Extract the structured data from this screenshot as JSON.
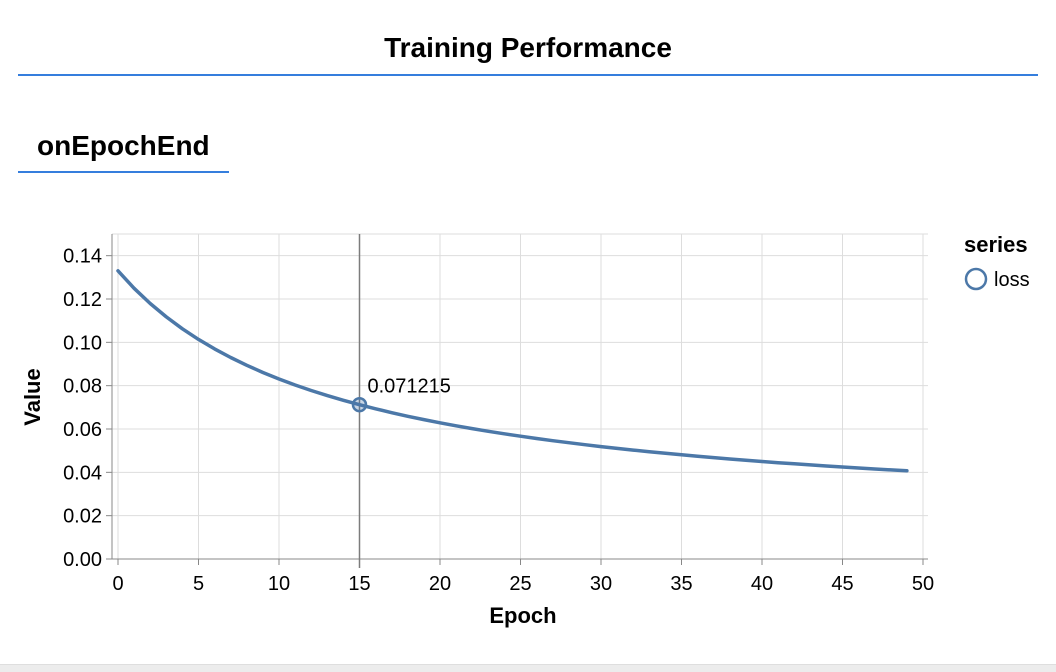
{
  "page": {
    "title": "Training Performance",
    "section_label": "onEpochEnd",
    "accent_color": "#357edd",
    "bottom_bar_color": "#ececec"
  },
  "chart_data": {
    "type": "line",
    "title": "onEpochEnd",
    "xlabel": "Epoch",
    "ylabel": "Value",
    "xlim": [
      0,
      50
    ],
    "ylim": [
      0,
      0.15
    ],
    "grid": true,
    "x_ticks": [
      0,
      5,
      10,
      15,
      20,
      25,
      30,
      35,
      40,
      45,
      50
    ],
    "y_tick_values": [
      0,
      0.02,
      0.04,
      0.06,
      0.08,
      0.1,
      0.12,
      0.14
    ],
    "y_tick_labels": [
      "0.00",
      "0.02",
      "0.04",
      "0.06",
      "0.08",
      "0.10",
      "0.12",
      "0.14"
    ],
    "legend": {
      "position": "right",
      "title": "series",
      "entries": [
        {
          "label": "loss",
          "color": "#4c78a8",
          "symbol": "open-circle"
        }
      ]
    },
    "series": [
      {
        "name": "loss",
        "color": "#4c78a8",
        "x": [
          0,
          1,
          2,
          3,
          4,
          5,
          6,
          7,
          8,
          9,
          10,
          11,
          12,
          13,
          14,
          15,
          16,
          17,
          18,
          19,
          20,
          21,
          22,
          23,
          24,
          25,
          26,
          27,
          28,
          29,
          30,
          31,
          32,
          33,
          34,
          35,
          36,
          37,
          38,
          39,
          40,
          41,
          42,
          43,
          44,
          45,
          46,
          47,
          48,
          49
        ],
        "y": [
          0.133,
          0.124941,
          0.117915,
          0.111729,
          0.106246,
          0.101352,
          0.096956,
          0.092985,
          0.089382,
          0.086097,
          0.08309,
          0.080327,
          0.077779,
          0.075423,
          0.073237,
          0.071215,
          0.069308,
          0.067536,
          0.065875,
          0.064317,
          0.062851,
          0.061469,
          0.060165,
          0.058933,
          0.057766,
          0.056659,
          0.055608,
          0.054609,
          0.053658,
          0.052751,
          0.051886,
          0.05106,
          0.05027,
          0.049514,
          0.048789,
          0.048095,
          0.047428,
          0.046788,
          0.046172,
          0.04558,
          0.04501,
          0.044461,
          0.043931,
          0.043421,
          0.042928,
          0.042452,
          0.041991,
          0.041546,
          0.041116,
          0.040699
        ]
      }
    ],
    "cursor": {
      "series": "loss",
      "x": 15,
      "value": 0.071215,
      "label": "0.071215"
    }
  }
}
